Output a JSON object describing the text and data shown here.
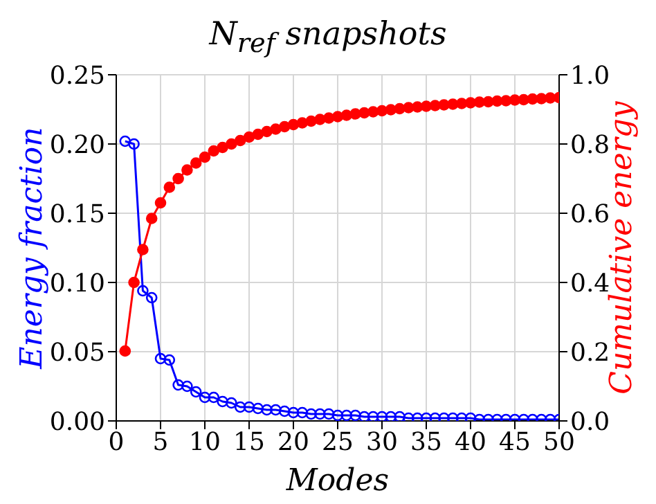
{
  "chart_data": {
    "type": "line",
    "title": "N$_{ref}$ snapshots",
    "xlabel": "Modes",
    "ylabel": "Energy fraction",
    "y2label": "Cumulative energy",
    "x": [
      1,
      2,
      3,
      4,
      5,
      6,
      7,
      8,
      9,
      10,
      11,
      12,
      13,
      14,
      15,
      16,
      17,
      18,
      19,
      20,
      21,
      22,
      23,
      24,
      25,
      26,
      27,
      28,
      29,
      30,
      31,
      32,
      33,
      34,
      35,
      36,
      37,
      38,
      39,
      40,
      41,
      42,
      43,
      44,
      45,
      46,
      47,
      48,
      49,
      50
    ],
    "series": [
      {
        "color": "#0000ff",
        "marker": "circle",
        "values": [
          0.202,
          0.2,
          0.094,
          0.089,
          0.045,
          0.044,
          0.026,
          0.025,
          0.021,
          0.017,
          0.017,
          0.014,
          0.013,
          0.01,
          0.01,
          0.009,
          0.008,
          0.008,
          0.007,
          0.006,
          0.006,
          0.005,
          0.005,
          0.005,
          0.004,
          0.004,
          0.004,
          0.003,
          0.003,
          0.003,
          0.003,
          0.003,
          0.002,
          0.002,
          0.002,
          0.002,
          0.002,
          0.002,
          0.002,
          0.002,
          0.001,
          0.001,
          0.001,
          0.001,
          0.001,
          0.001,
          0.001,
          0.001,
          0.001,
          0.001
        ]
      },
      {
        "color": "#ff0000",
        "marker": "circle",
        "axis": "y2",
        "values": [
          0.202,
          0.4,
          0.495,
          0.585,
          0.63,
          0.675,
          0.7,
          0.725,
          0.745,
          0.762,
          0.78,
          0.79,
          0.8,
          0.81,
          0.82,
          0.828,
          0.836,
          0.843,
          0.85,
          0.856,
          0.861,
          0.866,
          0.871,
          0.875,
          0.879,
          0.883,
          0.887,
          0.89,
          0.893,
          0.896,
          0.899,
          0.902,
          0.905,
          0.907,
          0.909,
          0.911,
          0.913,
          0.915,
          0.917,
          0.919,
          0.921,
          0.922,
          0.924,
          0.925,
          0.927,
          0.928,
          0.93,
          0.931,
          0.933,
          0.934
        ]
      }
    ],
    "xlim": [
      0,
      50
    ],
    "xticks": [
      0,
      5,
      10,
      15,
      20,
      25,
      30,
      35,
      40,
      45,
      50
    ],
    "ylim": [
      0,
      0.25
    ],
    "yticks": [
      {
        "value": 0,
        "label": "0.00"
      },
      0.05,
      {
        "value": 0.1,
        "label": "0.10"
      },
      0.15,
      {
        "value": 0.2,
        "label": "0.20"
      },
      0.25
    ],
    "y2lim": [
      0,
      1
    ],
    "y2ticks": [
      {
        "value": 0,
        "label": "0.0"
      },
      0.2,
      0.4,
      0.6,
      0.8,
      {
        "value": 1,
        "label": "1.0"
      }
    ],
    "grid": true,
    "legend": false
  }
}
